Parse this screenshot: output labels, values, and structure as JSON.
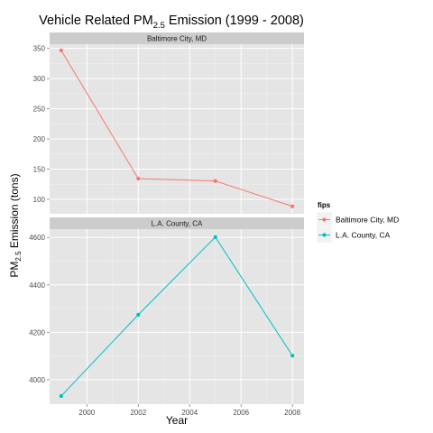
{
  "chart_data": {
    "type": "line",
    "title_main": "Vehicle Related PM",
    "title_sub": "2.5",
    "title_rest": " Emission (1999 - 2008)",
    "xlabel": "Year",
    "ylabel_main": "PM",
    "ylabel_sub": "2.5",
    "ylabel_rest": " Emission (tons)",
    "x_ticks": [
      "2000",
      "2002",
      "2004",
      "2006",
      "2008"
    ],
    "legend": {
      "title": "fips",
      "entries": [
        {
          "label": "Baltimore City, MD",
          "color": "#F8766D"
        },
        {
          "label": "L.A. County, CA",
          "color": "#00BFC4"
        }
      ]
    },
    "panels": [
      {
        "strip": "Baltimore City, MD",
        "color": "#F8766D",
        "x": [
          1999,
          2002,
          2005,
          2008
        ],
        "y": [
          346.8,
          134.3,
          130.4,
          88.3
        ],
        "y_ticks": [
          "100",
          "150",
          "200",
          "250",
          "300",
          "350"
        ],
        "ylim": [
          76,
          357
        ]
      },
      {
        "strip": "L.A. County, CA",
        "color": "#00BFC4",
        "x": [
          1999,
          2002,
          2005,
          2008
        ],
        "y": [
          3931.1,
          4274.0,
          4601.4,
          4101.3
        ],
        "y_ticks": [
          "4000",
          "4200",
          "4400",
          "4600"
        ],
        "ylim": [
          3897,
          4635
        ]
      }
    ],
    "xlim": [
      1998.55,
      2008.45
    ],
    "grid": true,
    "legend_position": "right"
  }
}
